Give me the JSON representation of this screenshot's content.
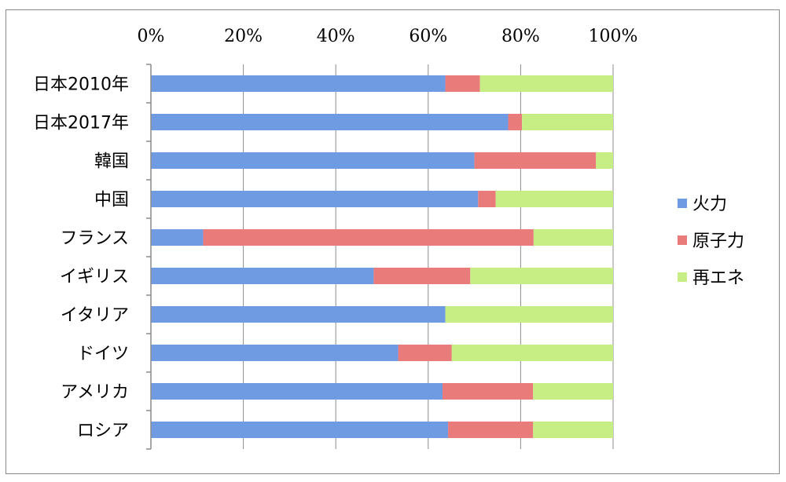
{
  "chart_data": {
    "type": "bar",
    "orientation": "horizontal",
    "stacked": true,
    "percent_stacked": true,
    "categories": [
      "日本2010年",
      "日本2017年",
      "韓国",
      "中国",
      "フランス",
      "イギリス",
      "イタリア",
      "ドイツ",
      "アメリカ",
      "ロシア"
    ],
    "series": [
      {
        "name": "火力",
        "color": "#6f9be3",
        "values": [
          63.7,
          77.3,
          70.0,
          70.8,
          11.3,
          48.2,
          63.7,
          53.5,
          63.1,
          64.3
        ]
      },
      {
        "name": "原子力",
        "color": "#ea7b7b",
        "values": [
          7.5,
          3.0,
          26.3,
          3.8,
          71.5,
          20.9,
          0,
          11.6,
          19.6,
          18.4
        ]
      },
      {
        "name": "再エネ",
        "color": "#c6ee85",
        "values": [
          28.8,
          19.7,
          3.7,
          25.4,
          17.2,
          30.9,
          36.3,
          34.9,
          17.3,
          17.3
        ]
      }
    ],
    "xlim": [
      0,
      100
    ],
    "xticks": [
      "0%",
      "20%",
      "40%",
      "60%",
      "80%",
      "100%"
    ],
    "grid": true,
    "legend_position": "right",
    "title": "",
    "xlabel": "",
    "ylabel": ""
  }
}
